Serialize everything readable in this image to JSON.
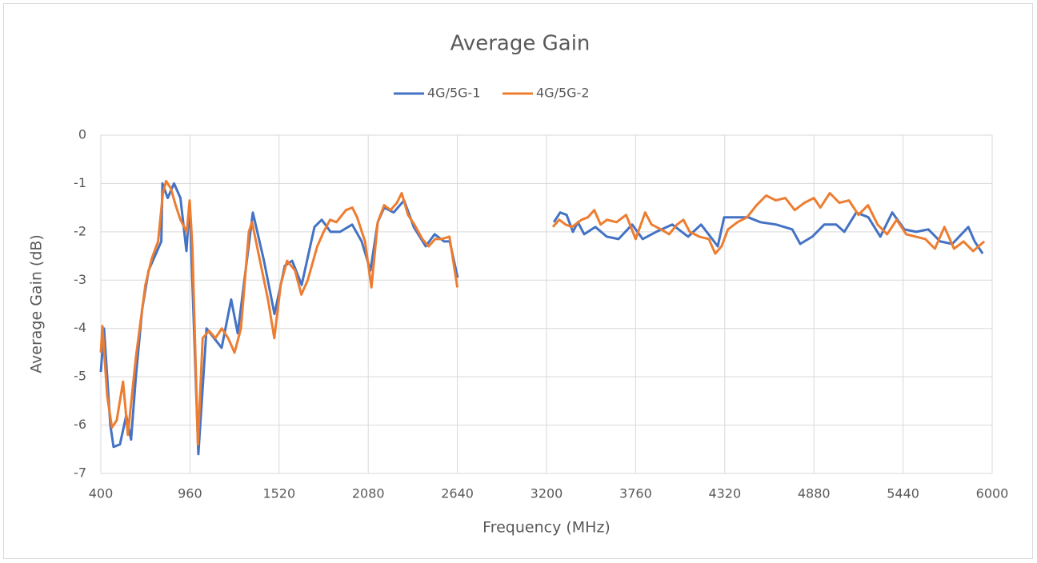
{
  "chart_data": {
    "type": "line",
    "title": "Average Gain",
    "xlabel": "Frequency (MHz)",
    "ylabel": "Average Gain (dB)",
    "xlim": [
      400,
      6000
    ],
    "xticks": [
      400,
      960,
      1520,
      2080,
      2640,
      3200,
      3760,
      4320,
      4880,
      5440,
      6000
    ],
    "ylim": [
      -7,
      0
    ],
    "yticks": [
      0,
      -1,
      -2,
      -3,
      -4,
      -5,
      -6,
      -7
    ],
    "grid": true,
    "legend": "top",
    "series": [
      {
        "name": "4G/5G-1",
        "color": "#4472c4",
        "x": [
          400,
          420,
          460,
          480,
          520,
          560,
          590,
          620,
          660,
          700,
          740,
          780,
          787,
          820,
          860,
          900,
          938,
          958,
          1013,
          1064,
          1159,
          1219,
          1260,
          1355,
          1425,
          1491,
          1556,
          1602,
          1662,
          1742,
          1788,
          1843,
          1903,
          1979,
          2039,
          2094,
          2140,
          2180,
          2240,
          2305,
          2366,
          2441,
          2497,
          2557,
          2592,
          2642,
          2900,
          3246,
          3286,
          3326,
          3366,
          3397,
          3437,
          3507,
          3578,
          3653,
          3738,
          3804,
          3889,
          3990,
          4090,
          4171,
          4241,
          4276,
          4316,
          4367,
          4467,
          4543,
          4643,
          4744,
          4794,
          4870,
          4945,
          5020,
          5071,
          5146,
          5222,
          5297,
          5372,
          5448,
          5523,
          5599,
          5674,
          5749,
          5850,
          5890,
          5940
        ],
        "values": [
          -4.9,
          -4.0,
          -6.0,
          -6.45,
          -6.4,
          -5.8,
          -6.3,
          -5.0,
          -3.6,
          -2.8,
          -2.5,
          -2.2,
          -1.0,
          -1.3,
          -1.0,
          -1.3,
          -2.4,
          -1.4,
          -6.6,
          -4.0,
          -4.4,
          -3.4,
          -4.1,
          -1.6,
          -2.6,
          -3.7,
          -2.7,
          -2.6,
          -3.1,
          -1.9,
          -1.75,
          -2.0,
          -2.0,
          -1.85,
          -2.2,
          -2.8,
          -1.8,
          -1.5,
          -1.6,
          -1.35,
          -1.9,
          -2.3,
          -2.05,
          -2.2,
          -2.2,
          -2.95,
          null,
          -1.8,
          -1.6,
          -1.65,
          -2.0,
          -1.8,
          -2.05,
          -1.9,
          -2.1,
          -2.15,
          -1.85,
          -2.15,
          -2.0,
          -1.85,
          -2.1,
          -1.85,
          -2.15,
          -2.3,
          -1.7,
          -1.7,
          -1.7,
          -1.8,
          -1.85,
          -1.95,
          -2.25,
          -2.1,
          -1.85,
          -1.85,
          -2.0,
          -1.6,
          -1.7,
          -2.1,
          -1.6,
          -1.95,
          -2.0,
          -1.95,
          -2.2,
          -2.25,
          -1.9,
          -2.2,
          -2.45
        ]
      },
      {
        "name": "4G/5G-2",
        "color": "#ed7d31",
        "x": [
          400,
          410,
          440,
          470,
          500,
          540,
          570,
          620,
          680,
          720,
          760,
          790,
          810,
          840,
          870,
          900,
          940,
          958,
          975,
          1010,
          1040,
          1080,
          1120,
          1160,
          1200,
          1240,
          1280,
          1330,
          1350,
          1400,
          1450,
          1490,
          1530,
          1570,
          1620,
          1660,
          1700,
          1760,
          1800,
          1840,
          1880,
          1940,
          1980,
          2010,
          2060,
          2100,
          2140,
          2180,
          2220,
          2260,
          2290,
          2330,
          2370,
          2420,
          2460,
          2500,
          2540,
          2590,
          2640,
          2900,
          3240,
          3280,
          3320,
          3360,
          3420,
          3460,
          3500,
          3540,
          3580,
          3640,
          3700,
          3760,
          3820,
          3860,
          3920,
          3970,
          4020,
          4060,
          4100,
          4160,
          4220,
          4260,
          4300,
          4340,
          4400,
          4460,
          4520,
          4580,
          4640,
          4700,
          4760,
          4820,
          4880,
          4920,
          4980,
          5040,
          5100,
          5160,
          5220,
          5280,
          5340,
          5400,
          5460,
          5520,
          5580,
          5640,
          5700,
          5760,
          5820,
          5880,
          5950
        ],
        "values": [
          -4.5,
          -3.95,
          -5.4,
          -6.05,
          -5.9,
          -5.1,
          -6.2,
          -4.6,
          -3.1,
          -2.55,
          -2.2,
          -1.2,
          -0.95,
          -1.1,
          -1.45,
          -1.75,
          -2.0,
          -1.35,
          -2.3,
          -6.4,
          -4.2,
          -4.05,
          -4.2,
          -4.0,
          -4.2,
          -4.5,
          -4.0,
          -2.0,
          -1.8,
          -2.6,
          -3.4,
          -4.2,
          -3.1,
          -2.6,
          -2.8,
          -3.3,
          -3.0,
          -2.3,
          -2.0,
          -1.75,
          -1.8,
          -1.55,
          -1.5,
          -1.7,
          -2.2,
          -3.15,
          -1.8,
          -1.45,
          -1.55,
          -1.4,
          -1.2,
          -1.65,
          -1.85,
          -2.15,
          -2.3,
          -2.15,
          -2.15,
          -2.1,
          -3.15,
          null,
          -1.9,
          -1.75,
          -1.85,
          -1.9,
          -1.75,
          -1.7,
          -1.55,
          -1.85,
          -1.75,
          -1.8,
          -1.65,
          -2.15,
          -1.6,
          -1.85,
          -1.95,
          -2.05,
          -1.85,
          -1.75,
          -2.0,
          -2.1,
          -2.15,
          -2.45,
          -2.3,
          -1.95,
          -1.8,
          -1.7,
          -1.45,
          -1.25,
          -1.35,
          -1.3,
          -1.55,
          -1.4,
          -1.3,
          -1.5,
          -1.2,
          -1.4,
          -1.35,
          -1.65,
          -1.45,
          -1.85,
          -2.05,
          -1.75,
          -2.05,
          -2.1,
          -2.15,
          -2.35,
          -1.9,
          -2.35,
          -2.2,
          -2.4,
          -2.2
        ]
      }
    ]
  }
}
